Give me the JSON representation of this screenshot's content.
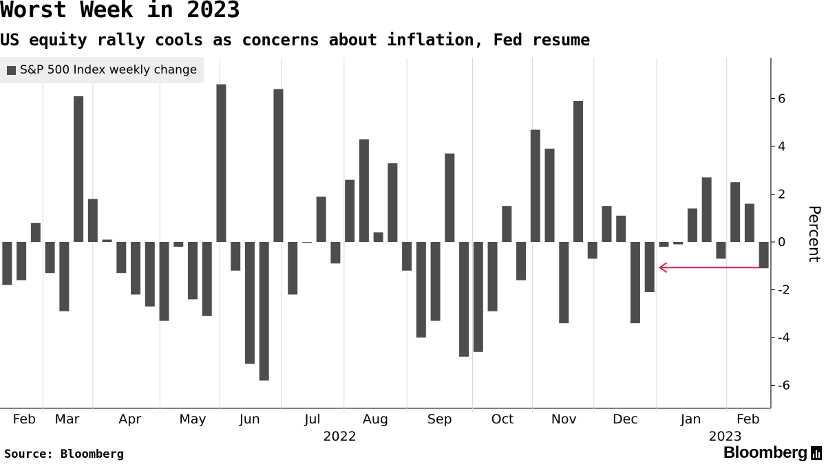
{
  "chart_data": {
    "type": "bar",
    "title": "Worst Week in 2023",
    "subtitle": "US equity rally cools as concerns about inflation, Fed resume",
    "series": [
      {
        "name": "S&P 500 Index weekly change",
        "color": "#4d4d4d",
        "values": [
          -1.8,
          -1.6,
          0.8,
          -1.3,
          -2.9,
          6.1,
          1.8,
          0.1,
          -1.3,
          -2.2,
          -2.7,
          -3.3,
          -0.2,
          -2.4,
          -3.1,
          6.6,
          -1.2,
          -5.1,
          -5.8,
          6.4,
          -2.2,
          0.0,
          1.9,
          -0.9,
          2.6,
          4.3,
          0.4,
          3.3,
          -1.2,
          -4.0,
          -3.3,
          3.7,
          -4.8,
          -4.6,
          -2.9,
          1.5,
          -1.6,
          4.7,
          3.9,
          -3.4,
          5.9,
          -0.7,
          1.5,
          1.1,
          -3.4,
          -2.1,
          -0.2,
          -0.1,
          1.4,
          2.7,
          -0.7,
          2.5,
          1.6,
          -1.1
        ]
      }
    ],
    "months": [
      {
        "label": "Feb"
      },
      {
        "label": "Mar"
      },
      {
        "label": "Apr"
      },
      {
        "label": "May"
      },
      {
        "label": "Jun"
      },
      {
        "label": "Jul"
      },
      {
        "label": "Aug"
      },
      {
        "label": "Sep"
      },
      {
        "label": "Oct"
      },
      {
        "label": "Nov"
      },
      {
        "label": "Dec"
      },
      {
        "label": "Jan"
      },
      {
        "label": "Feb"
      }
    ],
    "years": [
      "2022",
      "2023"
    ],
    "ylabel": "Percent",
    "ylim": [
      -7,
      7.7
    ],
    "yticks": [
      6,
      4,
      2,
      0,
      -2,
      -4,
      -6
    ],
    "annotation": {
      "type": "arrow",
      "color": "#e8194a",
      "note": "points left from latest week"
    },
    "source": "Source: Bloomberg",
    "brand": "Bloomberg"
  }
}
